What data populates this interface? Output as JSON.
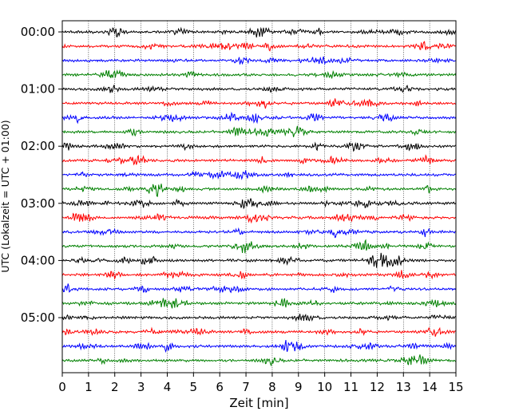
{
  "chart_data": {
    "type": "line",
    "title": "",
    "xlabel": "Zeit  [min]",
    "ylabel": "UTC (Lokalzeit = UTC + 01:00)",
    "xlim": [
      0,
      15
    ],
    "x_ticks": [
      "0",
      "1",
      "2",
      "3",
      "4",
      "5",
      "6",
      "7",
      "8",
      "9",
      "10",
      "11",
      "12",
      "13",
      "14",
      "15"
    ],
    "y_tick_labels": [
      "00:00",
      "01:00",
      "02:00",
      "03:00",
      "04:00",
      "05:00"
    ],
    "trace_interval_minutes": 15,
    "trace_count": 24,
    "trace_colors": [
      "#000000",
      "#ff0000",
      "#0000ff",
      "#008000"
    ],
    "grid_x": "dotted vertical lines at each minute",
    "series_description": "helicorder seismogram traces, one per 15 minutes, color cycling black/red/blue/green"
  }
}
